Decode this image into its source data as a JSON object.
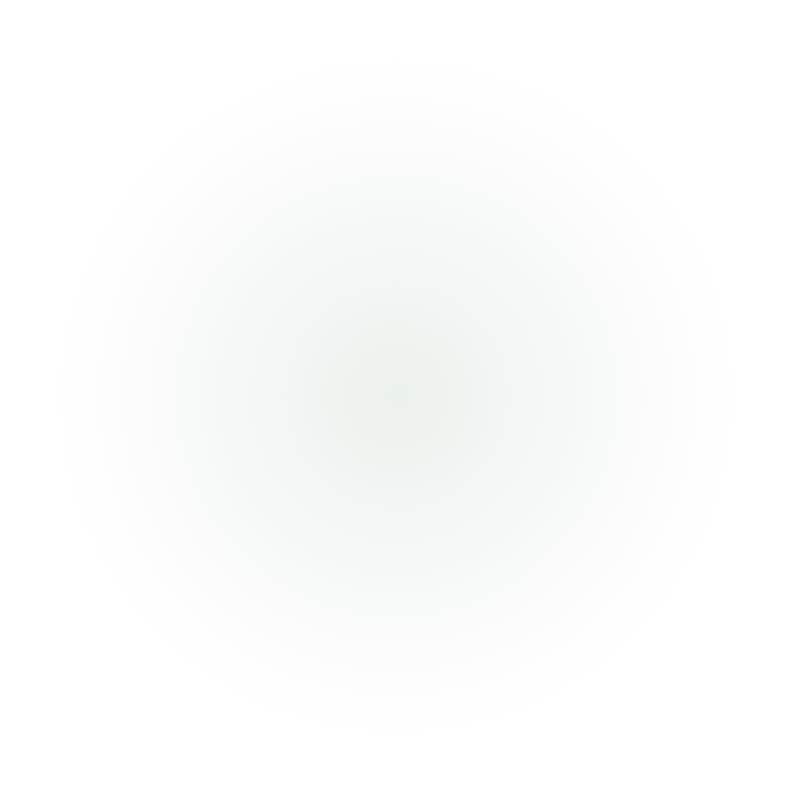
{
  "background": {
    "center_color": "#eff3f0",
    "edge_color": "#ffffff"
  }
}
